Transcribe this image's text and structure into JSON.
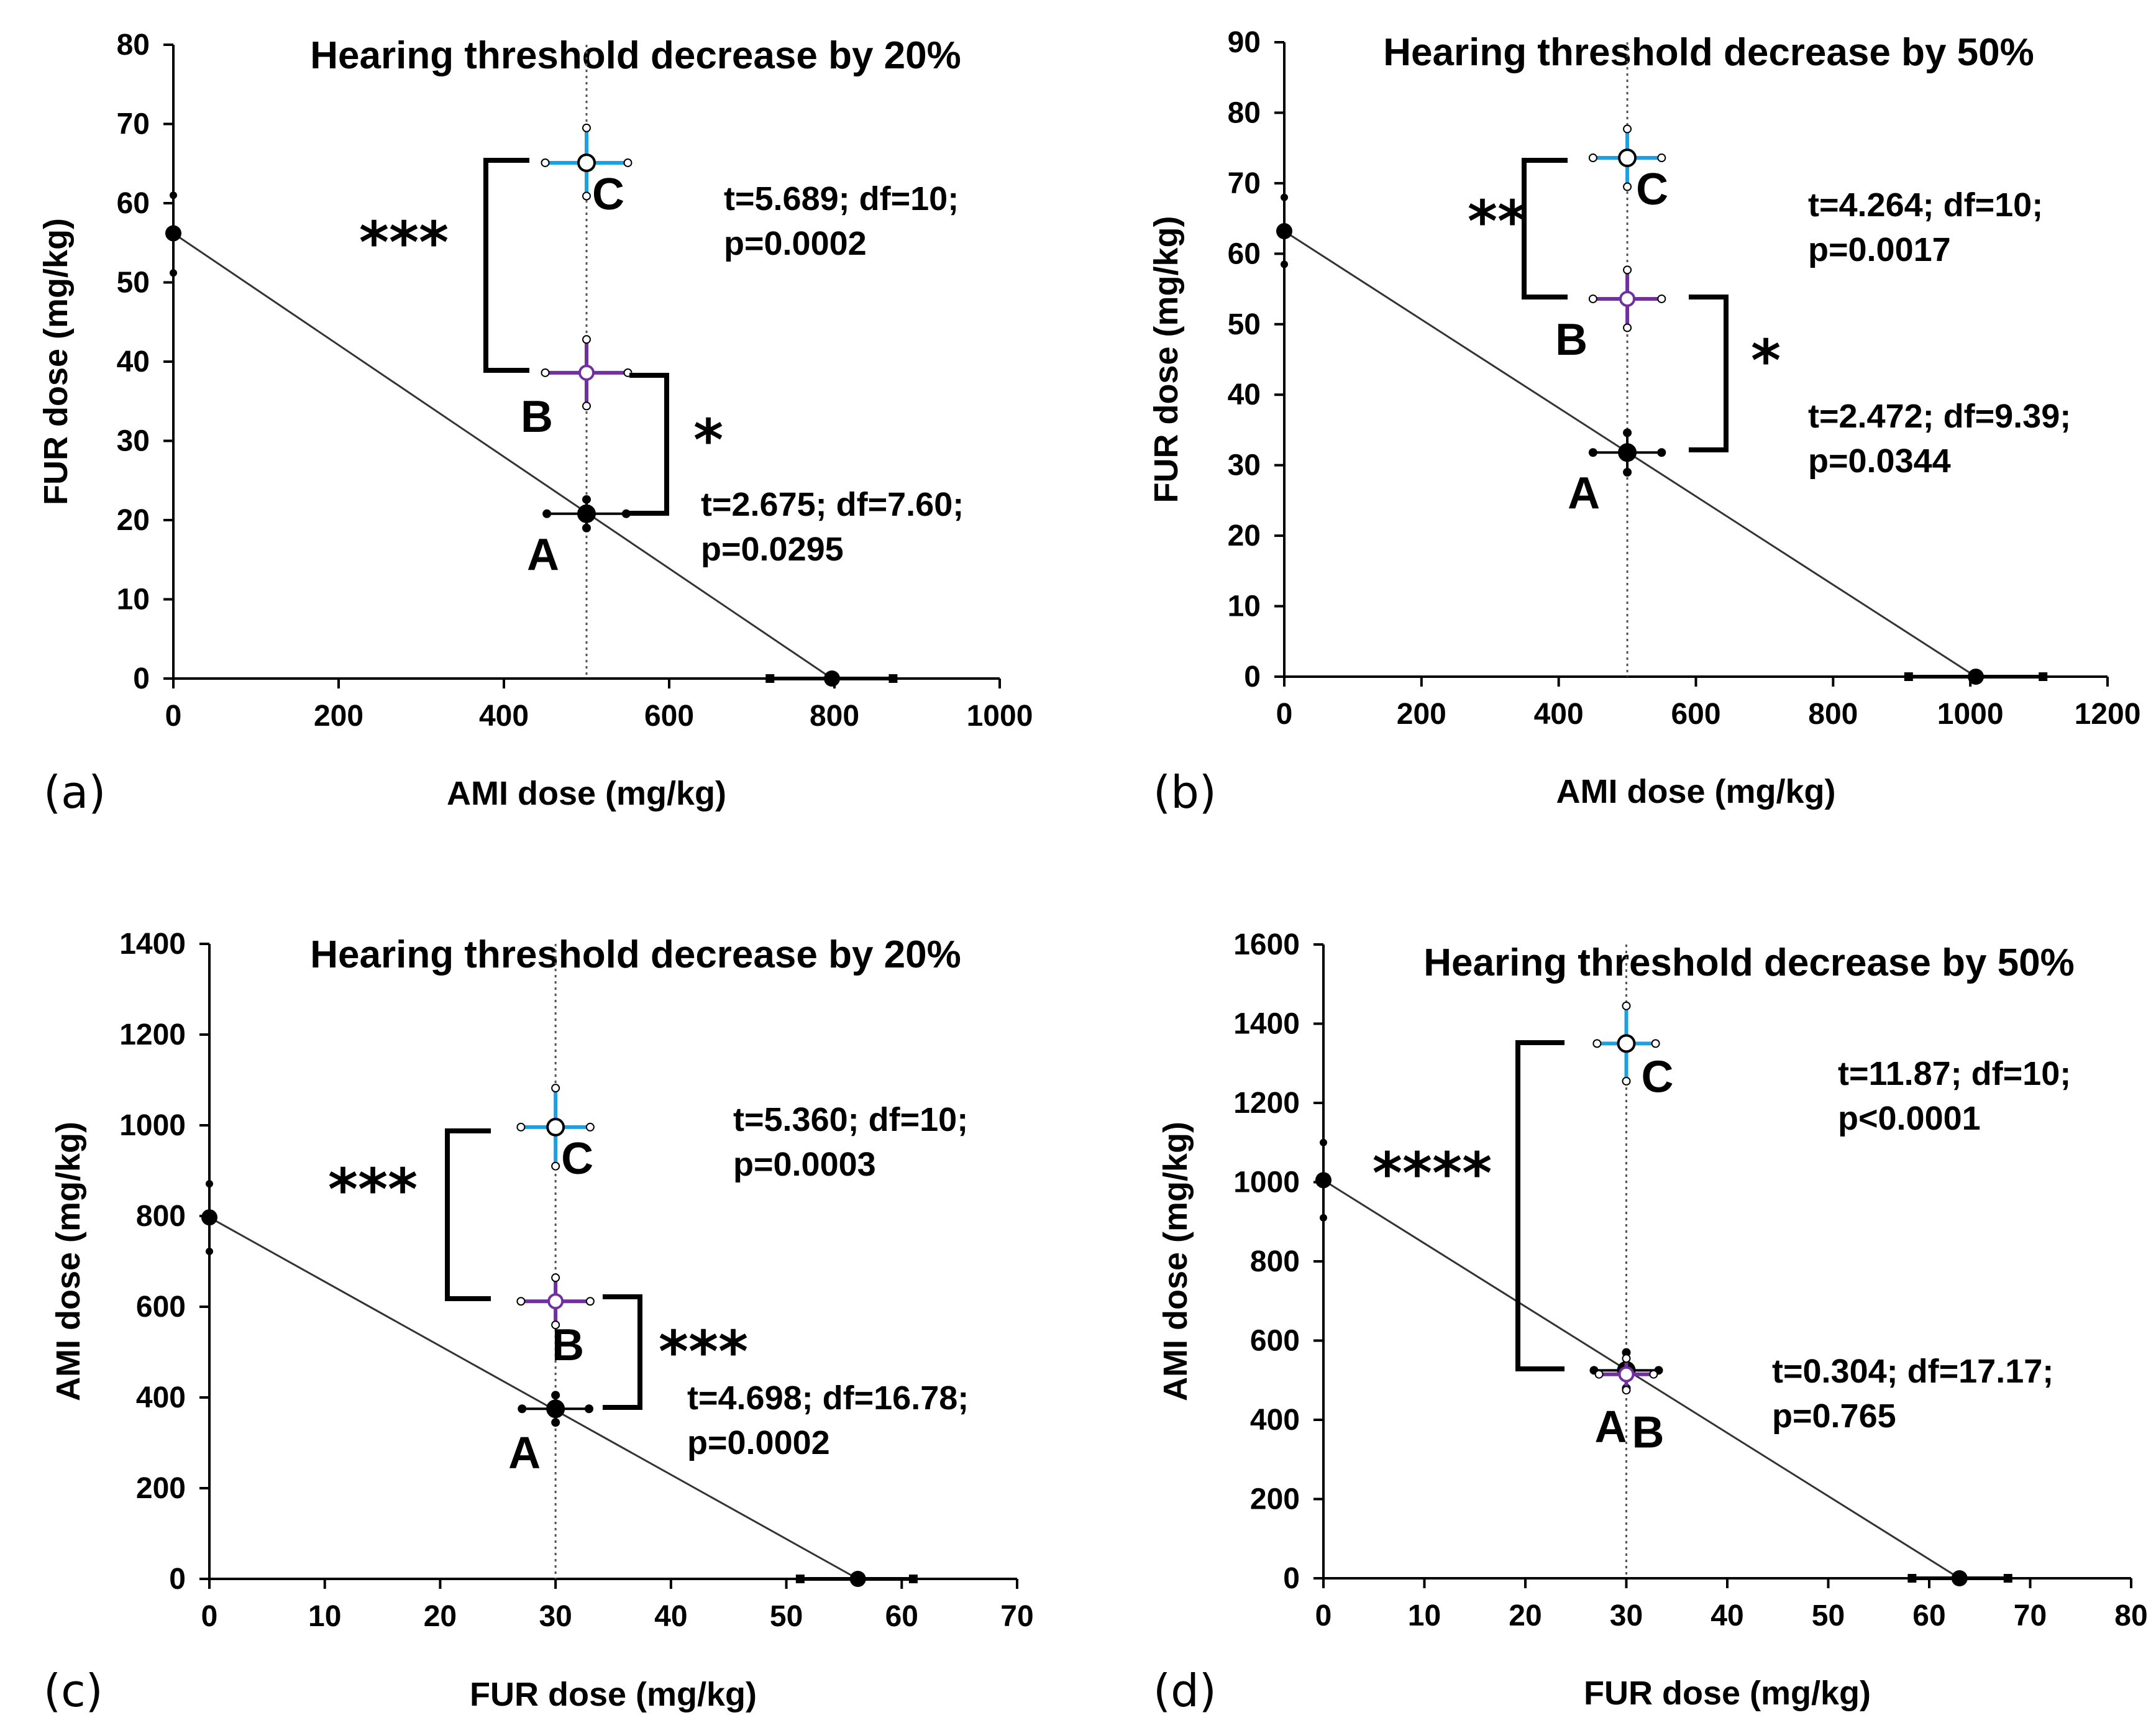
{
  "chart_data": [
    {
      "type": "scatter",
      "panel": "(a)",
      "title": "Hearing threshold decrease by 20%",
      "xlabel": "AMI dose (mg/kg)",
      "ylabel": "FUR dose (mg/kg)",
      "xlim": [
        0,
        1000
      ],
      "ylim": [
        0,
        80
      ],
      "xticks": [
        0,
        200,
        400,
        600,
        800,
        1000
      ],
      "yticks": [
        0,
        10,
        20,
        30,
        40,
        50,
        60,
        70,
        80
      ],
      "reference_x": 500,
      "isobole": {
        "endpoints": [
          {
            "x": 0,
            "y": 56.2,
            "err_low": 51.2,
            "err_high": 61.0
          },
          {
            "x": 797,
            "y": 0,
            "err_low": 722,
            "err_high": 871
          }
        ]
      },
      "points": [
        {
          "label": "A",
          "x": 500,
          "y": 20.8,
          "xerr": [
            452,
            548
          ],
          "yerr": [
            19.0,
            22.6
          ],
          "color": "#000000",
          "filled": true
        },
        {
          "label": "B",
          "x": 500,
          "y": 38.6,
          "xerr": [
            450,
            550
          ],
          "yerr": [
            34.4,
            42.8
          ],
          "color": "#7030a0",
          "filled": false
        },
        {
          "label": "C",
          "x": 500,
          "y": 65.1,
          "xerr": [
            450,
            550
          ],
          "yerr": [
            60.9,
            69.5
          ],
          "color": "#1ba1e2",
          "filled": false
        }
      ],
      "comparisons": [
        {
          "between": [
            "B",
            "C"
          ],
          "stars": "***",
          "stat": "t=5.689; df=10;",
          "p": "p=0.0002"
        },
        {
          "between": [
            "A",
            "B"
          ],
          "stars": "*",
          "stat": "t=2.675; df=7.60;",
          "p": "p=0.0295"
        }
      ]
    },
    {
      "type": "scatter",
      "panel": "(b)",
      "title": "Hearing threshold decrease by 50%",
      "xlabel": "AMI dose (mg/kg)",
      "ylabel": "FUR dose (mg/kg)",
      "xlim": [
        0,
        1200
      ],
      "ylim": [
        0,
        90
      ],
      "xticks": [
        0,
        200,
        400,
        600,
        800,
        1000,
        1200
      ],
      "yticks": [
        0,
        10,
        20,
        30,
        40,
        50,
        60,
        70,
        80,
        90
      ],
      "reference_x": 500,
      "isobole": {
        "endpoints": [
          {
            "x": 0,
            "y": 63.2,
            "err_low": 58.5,
            "err_high": 68.0
          },
          {
            "x": 1008,
            "y": 0,
            "err_low": 910,
            "err_high": 1106
          }
        ]
      },
      "points": [
        {
          "label": "A",
          "x": 500,
          "y": 31.8,
          "xerr": [
            450,
            550
          ],
          "yerr": [
            29.0,
            34.6
          ],
          "color": "#000000",
          "filled": true
        },
        {
          "label": "B",
          "x": 500,
          "y": 53.6,
          "xerr": [
            450,
            550
          ],
          "yerr": [
            49.5,
            57.7
          ],
          "color": "#7030a0",
          "filled": false
        },
        {
          "label": "C",
          "x": 500,
          "y": 73.6,
          "xerr": [
            450,
            550
          ],
          "yerr": [
            69.5,
            77.7
          ],
          "color": "#1ba1e2",
          "filled": false
        }
      ],
      "comparisons": [
        {
          "between": [
            "B",
            "C"
          ],
          "stars": "**",
          "stat": "t=4.264; df=10;",
          "p": "p=0.0017"
        },
        {
          "between": [
            "A",
            "B"
          ],
          "stars": "*",
          "stat": "t=2.472; df=9.39;",
          "p": "p=0.0344"
        }
      ]
    },
    {
      "type": "scatter",
      "panel": "(c)",
      "title": "Hearing threshold decrease by 20%",
      "xlabel": "FUR dose (mg/kg)",
      "ylabel": "AMI dose (mg/kg)",
      "xlim": [
        0,
        70
      ],
      "ylim": [
        0,
        1400
      ],
      "xticks": [
        0,
        10,
        20,
        30,
        40,
        50,
        60,
        70
      ],
      "yticks": [
        0,
        200,
        400,
        600,
        800,
        1000,
        1200,
        1400
      ],
      "reference_x": 30,
      "isobole": {
        "endpoints": [
          {
            "x": 0,
            "y": 797,
            "err_low": 722,
            "err_high": 871
          },
          {
            "x": 56.2,
            "y": 0,
            "err_low": 51.2,
            "err_high": 61.0
          }
        ]
      },
      "points": [
        {
          "label": "A",
          "x": 30,
          "y": 375,
          "xerr": [
            27.1,
            32.9
          ],
          "yerr": [
            345,
            405
          ],
          "color": "#000000",
          "filled": true
        },
        {
          "label": "B",
          "x": 30,
          "y": 612,
          "xerr": [
            27.0,
            33.0
          ],
          "yerr": [
            560,
            664
          ],
          "color": "#7030a0",
          "filled": false
        },
        {
          "label": "C",
          "x": 30,
          "y": 996,
          "xerr": [
            27.0,
            33.0
          ],
          "yerr": [
            910,
            1082
          ],
          "color": "#1ba1e2",
          "filled": false
        }
      ],
      "comparisons": [
        {
          "between": [
            "B",
            "C"
          ],
          "stars": "***",
          "stat": "t=5.360; df=10;",
          "p": "p=0.0003"
        },
        {
          "between": [
            "A",
            "B"
          ],
          "stars": "***",
          "stat": "t=4.698; df=16.78;",
          "p": "p=0.0002"
        }
      ]
    },
    {
      "type": "scatter",
      "panel": "(d)",
      "title": "Hearing threshold decrease by 50%",
      "xlabel": "FUR dose (mg/kg)",
      "ylabel": "AMI dose (mg/kg)",
      "xlim": [
        0,
        80
      ],
      "ylim": [
        0,
        1600
      ],
      "xticks": [
        0,
        10,
        20,
        30,
        40,
        50,
        60,
        70,
        80
      ],
      "yticks": [
        0,
        200,
        400,
        600,
        800,
        1000,
        1200,
        1400,
        1600
      ],
      "reference_x": 30,
      "isobole": {
        "endpoints": [
          {
            "x": 0,
            "y": 1005,
            "err_low": 910,
            "err_high": 1100
          },
          {
            "x": 63.0,
            "y": 0,
            "err_low": 58.3,
            "err_high": 67.8
          }
        ]
      },
      "points": [
        {
          "label": "A",
          "x": 30,
          "y": 525,
          "xerr": [
            26.8,
            33.2
          ],
          "yerr": [
            480,
            570
          ],
          "color": "#000000",
          "filled": true
        },
        {
          "label": "B",
          "x": 30,
          "y": 515,
          "xerr": [
            27.3,
            32.7
          ],
          "yerr": [
            475,
            555
          ],
          "color": "#7030a0",
          "filled": false
        },
        {
          "label": "C",
          "x": 30,
          "y": 1350,
          "xerr": [
            27.1,
            32.9
          ],
          "yerr": [
            1255,
            1445
          ],
          "color": "#1ba1e2",
          "filled": false
        }
      ],
      "comparisons": [
        {
          "between": [
            "A",
            "C"
          ],
          "stars": "****",
          "stat": "t=11.87; df=10;",
          "p": "p<0.0001"
        },
        {
          "between": [
            "A",
            "B"
          ],
          "stars": "",
          "stat": "t=0.304; df=17.17;",
          "p": "p=0.765"
        }
      ]
    }
  ]
}
